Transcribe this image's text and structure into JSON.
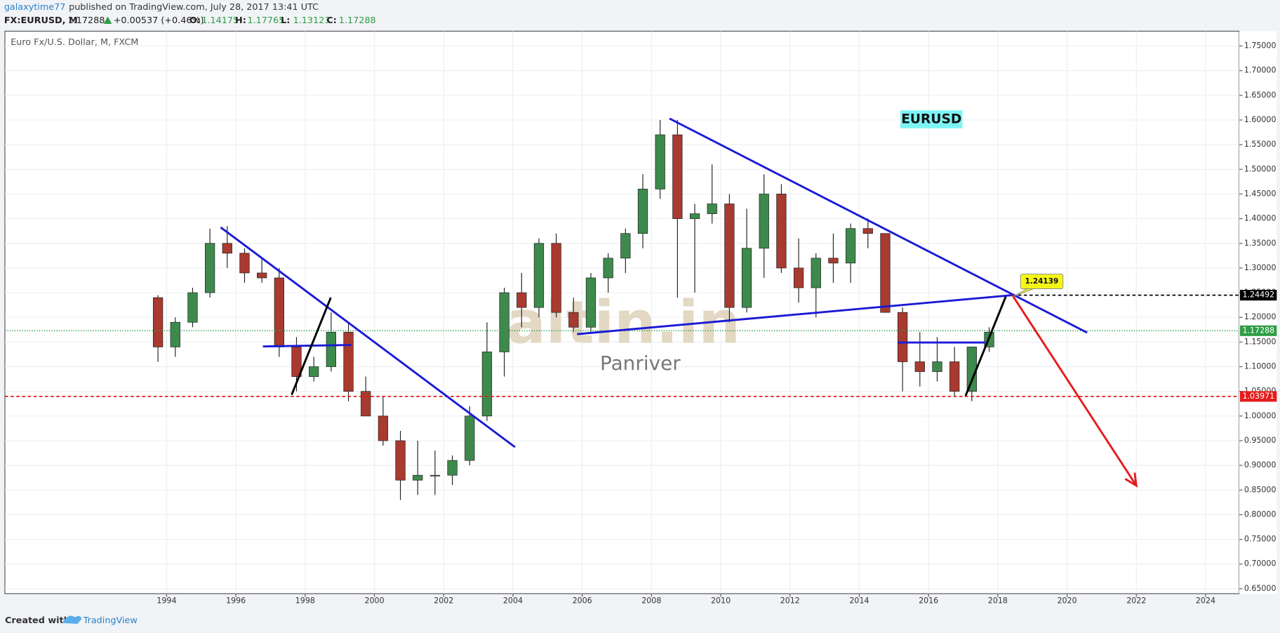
{
  "header": {
    "author": "galaxytime77",
    "published": "published on TradingView.com, July 28, 2017 13:41 UTC",
    "symbol": "FX:EURUSD, M",
    "price": "1.17288",
    "change": "+0.00537 (+0.46%)",
    "ohlc": [
      {
        "label": "O:",
        "value": "1.14175"
      },
      {
        "label": "H:",
        "value": "1.17765"
      },
      {
        "label": "L:",
        "value": "1.13123"
      },
      {
        "label": "C:",
        "value": "1.17288"
      }
    ]
  },
  "footer": {
    "created": "Created with",
    "brand": "TradingView"
  },
  "watermark": {
    "logo": "altin.in",
    "sub": "Panriver"
  },
  "chart_data": {
    "type": "candlestick",
    "title": "Euro Fx/U.S. Dollar, M, FXCM",
    "annotation": "EURUSD",
    "up_color": "#3d8a4c",
    "down_color": "#a83a2f",
    "grid": true,
    "xlim": [
      1989.33,
      2024.97
    ],
    "ylim": [
      0.64,
      1.78
    ],
    "xticks": [
      1994,
      1996,
      1998,
      2000,
      2002,
      2004,
      2006,
      2008,
      2010,
      2012,
      2014,
      2016,
      2018,
      2020,
      2022,
      2024
    ],
    "yticks": [
      {
        "value": 0.65,
        "label": "0.65000"
      },
      {
        "value": 0.7,
        "label": "0.70000"
      },
      {
        "value": 0.75,
        "label": "0.75000"
      },
      {
        "value": 0.8,
        "label": "0.80000"
      },
      {
        "value": 0.85,
        "label": "0.85000"
      },
      {
        "value": 0.9,
        "label": "0.90000"
      },
      {
        "value": 0.95,
        "label": "0.95000"
      },
      {
        "value": 1,
        "label": "1.00000"
      },
      {
        "value": 1.05,
        "label": "1.05000"
      },
      {
        "value": 1.1,
        "label": "1.10000"
      },
      {
        "value": 1.15,
        "label": "1.15000"
      },
      {
        "value": 1.2,
        "label": "1.20000"
      },
      {
        "value": 1.25,
        "label": "1.25000"
      },
      {
        "value": 1.3,
        "label": "1.30000"
      },
      {
        "value": 1.35,
        "label": "1.35000"
      },
      {
        "value": 1.4,
        "label": "1.40000"
      },
      {
        "value": 1.45,
        "label": "1.45000"
      },
      {
        "value": 1.5,
        "label": "1.50000"
      },
      {
        "value": 1.55,
        "label": "1.55000"
      },
      {
        "value": 1.6,
        "label": "1.60000"
      },
      {
        "value": 1.65,
        "label": "1.65000"
      },
      {
        "value": 1.7,
        "label": "1.70000"
      },
      {
        "value": 1.75,
        "label": "1.75000"
      }
    ],
    "x": [
      1993.5,
      1994.0,
      1994.5,
      1995.0,
      1995.5,
      1996.0,
      1996.5,
      1997.0,
      1997.5,
      1998.0,
      1998.5,
      1999.0,
      1999.5,
      2000.0,
      2000.5,
      2001.0,
      2001.5,
      2002.0,
      2002.5,
      2003.0,
      2003.5,
      2004.0,
      2004.5,
      2005.0,
      2005.5,
      2006.0,
      2006.5,
      2007.0,
      2007.5,
      2008.0,
      2008.5,
      2009.0,
      2009.5,
      2010.0,
      2010.5,
      2011.0,
      2011.5,
      2012.0,
      2012.5,
      2013.0,
      2013.5,
      2014.0,
      2014.5,
      2015.0,
      2015.5,
      2016.0,
      2016.5,
      2017.0,
      2017.5
    ],
    "ohlc": [
      [
        1.24,
        1.245,
        1.11,
        1.14
      ],
      [
        1.14,
        1.2,
        1.12,
        1.19
      ],
      [
        1.19,
        1.26,
        1.18,
        1.25
      ],
      [
        1.25,
        1.38,
        1.24,
        1.35
      ],
      [
        1.35,
        1.385,
        1.3,
        1.33
      ],
      [
        1.33,
        1.34,
        1.27,
        1.29
      ],
      [
        1.29,
        1.32,
        1.27,
        1.28
      ],
      [
        1.28,
        1.3,
        1.12,
        1.14
      ],
      [
        1.14,
        1.16,
        1.05,
        1.08
      ],
      [
        1.08,
        1.12,
        1.07,
        1.1
      ],
      [
        1.1,
        1.21,
        1.09,
        1.17
      ],
      [
        1.17,
        1.19,
        1.03,
        1.05
      ],
      [
        1.05,
        1.08,
        1.0,
        1.0
      ],
      [
        1.0,
        1.04,
        0.94,
        0.95
      ],
      [
        0.95,
        0.97,
        0.83,
        0.87
      ],
      [
        0.87,
        0.95,
        0.84,
        0.88
      ],
      [
        0.88,
        0.93,
        0.84,
        0.88
      ],
      [
        0.88,
        0.92,
        0.86,
        0.91
      ],
      [
        0.91,
        1.02,
        0.9,
        1.0
      ],
      [
        1.0,
        1.19,
        0.99,
        1.13
      ],
      [
        1.13,
        1.26,
        1.08,
        1.25
      ],
      [
        1.25,
        1.29,
        1.18,
        1.22
      ],
      [
        1.22,
        1.36,
        1.2,
        1.35
      ],
      [
        1.35,
        1.37,
        1.2,
        1.21
      ],
      [
        1.21,
        1.24,
        1.17,
        1.18
      ],
      [
        1.18,
        1.29,
        1.17,
        1.28
      ],
      [
        1.28,
        1.33,
        1.25,
        1.32
      ],
      [
        1.32,
        1.38,
        1.29,
        1.37
      ],
      [
        1.37,
        1.49,
        1.34,
        1.46
      ],
      [
        1.46,
        1.6,
        1.44,
        1.57
      ],
      [
        1.57,
        1.6,
        1.24,
        1.4
      ],
      [
        1.4,
        1.43,
        1.25,
        1.41
      ],
      [
        1.41,
        1.51,
        1.39,
        1.43
      ],
      [
        1.43,
        1.45,
        1.19,
        1.22
      ],
      [
        1.22,
        1.42,
        1.21,
        1.34
      ],
      [
        1.34,
        1.49,
        1.28,
        1.45
      ],
      [
        1.45,
        1.47,
        1.29,
        1.3
      ],
      [
        1.3,
        1.36,
        1.23,
        1.26
      ],
      [
        1.26,
        1.33,
        1.2,
        1.32
      ],
      [
        1.32,
        1.37,
        1.27,
        1.31
      ],
      [
        1.31,
        1.39,
        1.27,
        1.38
      ],
      [
        1.38,
        1.4,
        1.34,
        1.37
      ],
      [
        1.37,
        1.37,
        1.21,
        1.21
      ],
      [
        1.21,
        1.22,
        1.05,
        1.11
      ],
      [
        1.11,
        1.17,
        1.06,
        1.09
      ],
      [
        1.09,
        1.16,
        1.07,
        1.11
      ],
      [
        1.11,
        1.14,
        1.04,
        1.05
      ],
      [
        1.05,
        1.14,
        1.03,
        1.14
      ],
      [
        1.14,
        1.18,
        1.13,
        1.17
      ]
    ],
    "drawings": [
      {
        "color": "#1a1ad6",
        "x": [
          1995.56,
          2004.06
        ],
        "y": [
          1.3825,
          0.937
        ]
      },
      {
        "color": "#1a1ad6",
        "x": [
          1996.78,
          1999.33
        ],
        "y": [
          1.141,
          1.144
        ]
      },
      {
        "color": "#000000",
        "x": [
          1997.61,
          1998.74
        ],
        "y": [
          1.043,
          1.24
        ]
      },
      {
        "color": "#1a1ad6",
        "x": [
          2008.52,
          2020.58
        ],
        "y": [
          1.603,
          1.169
        ]
      },
      {
        "color": "#1a1ad6",
        "x": [
          2005.85,
          2018.42
        ],
        "y": [
          1.166,
          1.245
        ]
      },
      {
        "color": "#1a1ad6",
        "x": [
          2015.12,
          2017.64
        ],
        "y": [
          1.149,
          1.149
        ]
      },
      {
        "color": "#000000",
        "x": [
          2017.07,
          2018.23
        ],
        "y": [
          1.041,
          1.242
        ]
      },
      {
        "color": "#e51c1c",
        "x": [
          2018.42,
          2022.0
        ],
        "y": [
          1.245,
          0.859
        ],
        "arrow": true
      }
    ],
    "levels": [
      {
        "value": 1.24492,
        "label": "1.24492",
        "color": "#000000",
        "dash": "4,3",
        "x_start": 2018.42
      },
      {
        "value": 1.17288,
        "label": "1.17288",
        "color": "#2e9e45",
        "dash": "1,2"
      },
      {
        "value": 1.03971,
        "label": "1.03971",
        "color": "#e51c1c",
        "dash": "4,3"
      }
    ],
    "callout": {
      "value": 1.24139,
      "label": "1.24139",
      "x": 2018.42
    }
  }
}
